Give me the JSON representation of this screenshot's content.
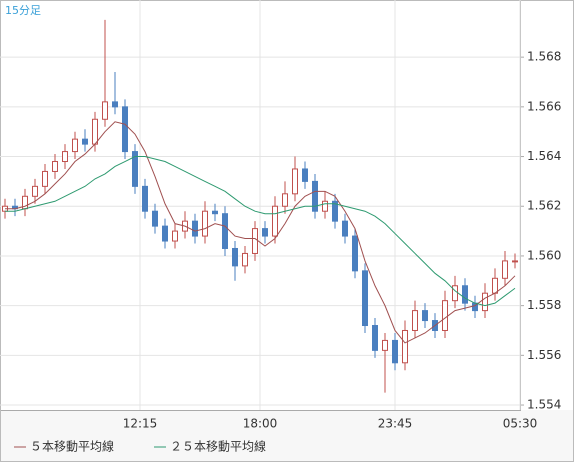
{
  "chart_data": {
    "type": "candlestick",
    "title": "15分足",
    "ohlc": {
      "open": [
        1.5618,
        1.562,
        1.5619,
        1.5624,
        1.5628,
        1.5634,
        1.5638,
        1.5642,
        1.5647,
        1.5645,
        1.5655,
        1.5662,
        1.566,
        1.5642,
        1.5628,
        1.5618,
        1.5612,
        1.5606,
        1.561,
        1.5614,
        1.5608,
        1.5618,
        1.5617,
        1.5603,
        1.5596,
        1.5601,
        1.5611,
        1.5608,
        1.562,
        1.5625,
        1.5635,
        1.563,
        1.5618,
        1.5622,
        1.5614,
        1.5608,
        1.5594,
        1.5572,
        1.5562,
        1.5566,
        1.5557,
        1.557,
        1.5578,
        1.5574,
        1.557,
        1.5582,
        1.5588,
        1.5581,
        1.5578,
        1.5585,
        1.5591,
        1.5598
      ],
      "high": [
        1.5623,
        1.5623,
        1.5627,
        1.5631,
        1.5637,
        1.5641,
        1.5645,
        1.565,
        1.5651,
        1.5658,
        1.5695,
        1.5674,
        1.5663,
        1.5645,
        1.5631,
        1.5621,
        1.5615,
        1.5613,
        1.5618,
        1.5617,
        1.5622,
        1.5621,
        1.562,
        1.5606,
        1.5604,
        1.5614,
        1.5614,
        1.5624,
        1.563,
        1.564,
        1.5638,
        1.5633,
        1.5626,
        1.5625,
        1.5617,
        1.5611,
        1.5597,
        1.5575,
        1.5569,
        1.5569,
        1.5574,
        1.5582,
        1.5581,
        1.5577,
        1.5586,
        1.5592,
        1.5591,
        1.5584,
        1.5589,
        1.5595,
        1.5602,
        1.5601
      ],
      "low": [
        1.5615,
        1.5616,
        1.5616,
        1.5621,
        1.5625,
        1.5631,
        1.5635,
        1.5639,
        1.5642,
        1.5642,
        1.5652,
        1.5657,
        1.5639,
        1.5625,
        1.5615,
        1.5609,
        1.5603,
        1.5603,
        1.5607,
        1.5605,
        1.5605,
        1.5614,
        1.56,
        1.559,
        1.5593,
        1.5598,
        1.5605,
        1.5605,
        1.5617,
        1.5622,
        1.5627,
        1.5615,
        1.5615,
        1.5611,
        1.5605,
        1.5591,
        1.5569,
        1.5559,
        1.5545,
        1.5554,
        1.5554,
        1.5567,
        1.5571,
        1.5567,
        1.5567,
        1.5579,
        1.5578,
        1.5575,
        1.5575,
        1.5582,
        1.5588,
        1.5595
      ],
      "close": [
        1.562,
        1.5619,
        1.5624,
        1.5628,
        1.5634,
        1.5638,
        1.5642,
        1.5647,
        1.5645,
        1.5655,
        1.5662,
        1.566,
        1.5642,
        1.5628,
        1.5618,
        1.5612,
        1.5606,
        1.561,
        1.5614,
        1.5608,
        1.5618,
        1.5617,
        1.5603,
        1.5596,
        1.5601,
        1.5611,
        1.5608,
        1.562,
        1.5625,
        1.5635,
        1.563,
        1.5618,
        1.5622,
        1.5614,
        1.5608,
        1.5594,
        1.5572,
        1.5562,
        1.5566,
        1.5557,
        1.557,
        1.5578,
        1.5574,
        1.557,
        1.5582,
        1.5588,
        1.5581,
        1.5578,
        1.5585,
        1.5591,
        1.5598,
        1.5598
      ]
    },
    "up_color": "#c0504d",
    "down_color": "#4a7fbf",
    "lines": [
      {
        "name": "５本移動平均線",
        "color": "#a05050",
        "values": [
          1.5619,
          1.5619,
          1.562,
          1.5622,
          1.5625,
          1.5629,
          1.5633,
          1.5638,
          1.5641,
          1.5645,
          1.565,
          1.5654,
          1.5653,
          1.5649,
          1.5642,
          1.5632,
          1.5621,
          1.5613,
          1.5612,
          1.561,
          1.5611,
          1.5613,
          1.5612,
          1.5608,
          1.5607,
          1.5607,
          1.5604,
          1.5607,
          1.5613,
          1.562,
          1.5624,
          1.5626,
          1.5626,
          1.5624,
          1.5618,
          1.5611,
          1.5598,
          1.5588,
          1.558,
          1.557,
          1.5565,
          1.5567,
          1.5569,
          1.5572,
          1.5575,
          1.5578,
          1.5579,
          1.558,
          1.5583,
          1.5585,
          1.5588,
          1.5592
        ]
      },
      {
        "name": "２５本移動平均線",
        "color": "#2e9a70",
        "values": [
          1.5618,
          1.5618,
          1.5619,
          1.562,
          1.5621,
          1.5622,
          1.5624,
          1.5626,
          1.5628,
          1.5631,
          1.5633,
          1.5636,
          1.5638,
          1.564,
          1.564,
          1.5639,
          1.5638,
          1.5636,
          1.5634,
          1.5632,
          1.563,
          1.5628,
          1.5626,
          1.5623,
          1.562,
          1.5618,
          1.5617,
          1.5617,
          1.5618,
          1.5619,
          1.562,
          1.562,
          1.5621,
          1.5621,
          1.562,
          1.5619,
          1.5618,
          1.5616,
          1.5613,
          1.5609,
          1.5605,
          1.5601,
          1.5597,
          1.5593,
          1.559,
          1.5586,
          1.5583,
          1.5581,
          1.558,
          1.5581,
          1.5584,
          1.5587
        ]
      }
    ],
    "xlim": [
      0,
      52
    ],
    "xticks": [
      {
        "value": 14,
        "label": "12:15"
      },
      {
        "value": 26,
        "label": "18:00"
      },
      {
        "value": 39.5,
        "label": "23:45"
      },
      {
        "value": 52,
        "label": "05:30"
      }
    ],
    "ylim": [
      1.5538,
      1.5703
    ],
    "yticks": [
      1.554,
      1.556,
      1.558,
      {
        "value": 1.56,
        "label": "1.560"
      },
      1.562,
      1.564,
      1.566,
      1.568
    ],
    "grid": true
  }
}
